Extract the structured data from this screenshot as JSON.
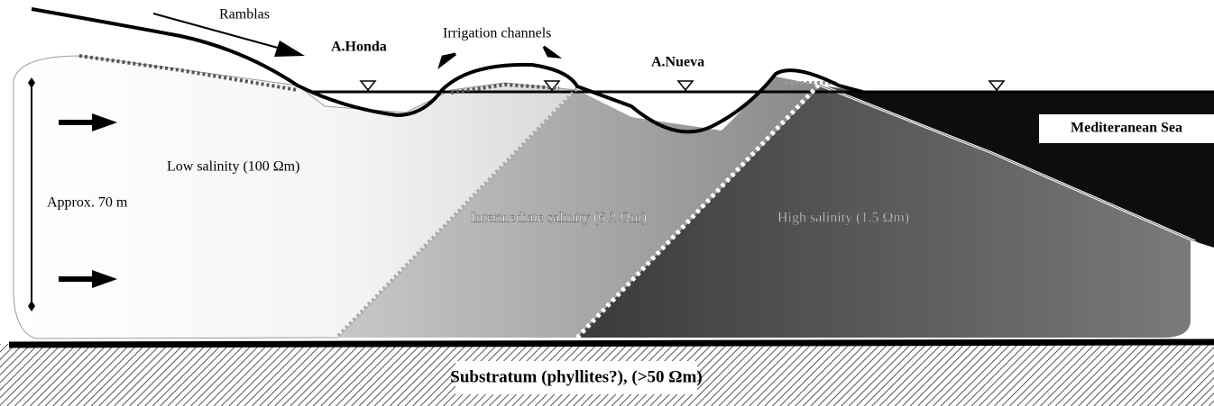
{
  "labels": {
    "ramblas": "Ramblas",
    "a_honda": "A.Honda",
    "irrigation": "Irrigation channels",
    "a_nueva": "A.Nueva",
    "sea": "Mediteranean Sea",
    "low": "Low salinity  (100 Ωm)",
    "depth": "Approx. 70 m",
    "intermediate": "Intermediate salinity (6.2 Ωm)",
    "high": "High salinity (1.5 Ωm)",
    "substratum": "Substratum (phyllites?),  (>50 Ωm)"
  }
}
